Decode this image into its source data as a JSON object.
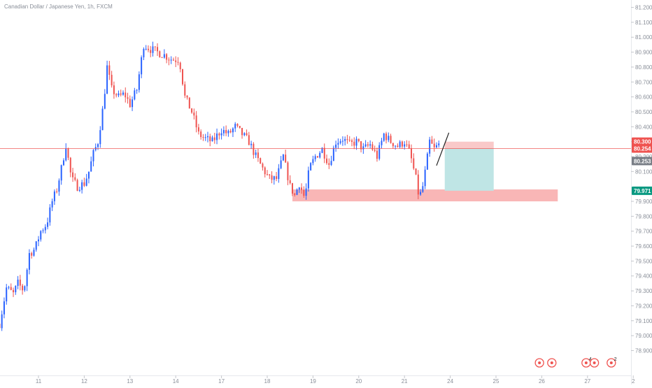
{
  "header": {
    "symbol_title": "Canadian Dollar / Japanese Yen, 1h, FXCM"
  },
  "colors": {
    "up": "#2962ff",
    "down": "#ef5350",
    "bg": "#ffffff",
    "axis_text": "#8a8f99",
    "price_line": "#ef5350",
    "zone": "#f8a9a9",
    "target_zone": "#bfe5e5",
    "stop_zone": "#f9c9c9",
    "badge_red": "#ef5350",
    "badge_grey": "#7a7f87",
    "badge_teal": "#089981",
    "event": "#ef5350"
  },
  "chart_data": {
    "type": "candlestick",
    "title": "Canadian Dollar / Japanese Yen, 1h, FXCM",
    "xlabel": "",
    "ylabel": "",
    "ylim": [
      78.86,
      81.24
    ],
    "y_ticks": [
      "81.200",
      "81.100",
      "81.000",
      "80.900",
      "80.800",
      "80.700",
      "80.600",
      "80.500",
      "80.400",
      "80.300",
      "80.200",
      "80.100",
      "79.900",
      "79.800",
      "79.700",
      "79.600",
      "79.500",
      "79.400",
      "79.300",
      "79.200",
      "79.100",
      "79.000",
      "78.900"
    ],
    "x_ticks": [
      {
        "label": "11",
        "t": 1.0
      },
      {
        "label": "12",
        "t": 2.0
      },
      {
        "label": "13",
        "t": 3.0
      },
      {
        "label": "14",
        "t": 4.0
      },
      {
        "label": "17",
        "t": 5.0
      },
      {
        "label": "18",
        "t": 6.0
      },
      {
        "label": "19",
        "t": 7.0
      },
      {
        "label": "20",
        "t": 8.0
      },
      {
        "label": "21",
        "t": 9.0
      },
      {
        "label": "24",
        "t": 10.0
      },
      {
        "label": "25",
        "t": 11.0
      },
      {
        "label": "26",
        "t": 12.0
      },
      {
        "label": "27",
        "t": 13.0
      },
      {
        "label": "2",
        "t": 14.0
      }
    ],
    "close_path": [
      [
        0.15,
        79.08
      ],
      [
        0.3,
        79.32
      ],
      [
        0.45,
        79.28
      ],
      [
        0.55,
        79.35
      ],
      [
        0.68,
        79.3
      ],
      [
        0.8,
        79.55
      ],
      [
        0.92,
        79.58
      ],
      [
        1.05,
        79.7
      ],
      [
        1.18,
        79.75
      ],
      [
        1.3,
        79.9
      ],
      [
        1.4,
        79.98
      ],
      [
        1.5,
        80.12
      ],
      [
        1.6,
        80.28
      ],
      [
        1.72,
        80.05
      ],
      [
        1.85,
        80.0
      ],
      [
        2.0,
        80.02
      ],
      [
        2.1,
        80.1
      ],
      [
        2.2,
        80.22
      ],
      [
        2.3,
        80.3
      ],
      [
        2.42,
        80.55
      ],
      [
        2.5,
        80.8
      ],
      [
        2.6,
        80.65
      ],
      [
        2.75,
        80.6
      ],
      [
        2.88,
        80.62
      ],
      [
        3.0,
        80.55
      ],
      [
        3.15,
        80.65
      ],
      [
        3.3,
        80.95
      ],
      [
        3.45,
        80.92
      ],
      [
        3.6,
        80.9
      ],
      [
        3.75,
        80.88
      ],
      [
        3.92,
        80.85
      ],
      [
        4.08,
        80.85
      ],
      [
        4.2,
        80.6
      ],
      [
        4.35,
        80.5
      ],
      [
        4.5,
        80.35
      ],
      [
        4.65,
        80.32
      ],
      [
        4.8,
        80.3
      ],
      [
        5.0,
        80.38
      ],
      [
        5.15,
        80.35
      ],
      [
        5.3,
        80.4
      ],
      [
        5.45,
        80.35
      ],
      [
        5.6,
        80.3
      ],
      [
        5.75,
        80.2
      ],
      [
        5.9,
        80.12
      ],
      [
        6.05,
        80.05
      ],
      [
        6.2,
        80.05
      ],
      [
        6.35,
        80.2
      ],
      [
        6.5,
        80.0
      ],
      [
        6.6,
        79.94
      ],
      [
        6.7,
        80.02
      ],
      [
        6.82,
        79.92
      ],
      [
        6.92,
        80.12
      ],
      [
        7.05,
        80.2
      ],
      [
        7.2,
        80.25
      ],
      [
        7.35,
        80.15
      ],
      [
        7.5,
        80.3
      ],
      [
        7.65,
        80.32
      ],
      [
        7.8,
        80.28
      ],
      [
        7.95,
        80.3
      ],
      [
        8.1,
        80.25
      ],
      [
        8.25,
        80.28
      ],
      [
        8.4,
        80.2
      ],
      [
        8.55,
        80.35
      ],
      [
        8.7,
        80.3
      ],
      [
        8.85,
        80.27
      ],
      [
        9.0,
        80.3
      ],
      [
        9.12,
        80.22
      ],
      [
        9.25,
        80.05
      ],
      [
        9.32,
        79.92
      ],
      [
        9.4,
        80.0
      ],
      [
        9.48,
        80.15
      ],
      [
        9.55,
        80.3
      ],
      [
        9.65,
        80.25
      ],
      [
        9.75,
        80.28
      ]
    ],
    "last_price": "80.254",
    "price_line": 80.254,
    "support_zone": {
      "y_top": 79.98,
      "y_bottom": 79.9,
      "t_start": 6.55,
      "t_end": 12.35
    },
    "trade_box": {
      "t_start": 9.88,
      "t_end": 10.95,
      "stop": 80.3,
      "entry": 80.254,
      "target": 79.971
    },
    "trend_line": [
      [
        9.7,
        80.14
      ],
      [
        9.97,
        80.36
      ]
    ],
    "price_badges": [
      {
        "label": "80.300",
        "value": 80.3,
        "color": "#ef5350"
      },
      {
        "label": "80.254",
        "value": 80.254,
        "color": "#ef5350"
      },
      {
        "label": "80.253",
        "value": 80.253,
        "color": "#7a7f87",
        "display_value": 80.17
      },
      {
        "label": "79.971",
        "value": 79.971,
        "color": "#089981"
      }
    ],
    "event_markers": [
      {
        "t": 11.95,
        "count": ""
      },
      {
        "t": 12.22,
        "count": ""
      },
      {
        "t": 12.97,
        "count": "4"
      },
      {
        "t": 13.15,
        "count": ""
      },
      {
        "t": 13.52,
        "count": "2"
      },
      {
        "t": 14.0,
        "count": ""
      }
    ]
  }
}
